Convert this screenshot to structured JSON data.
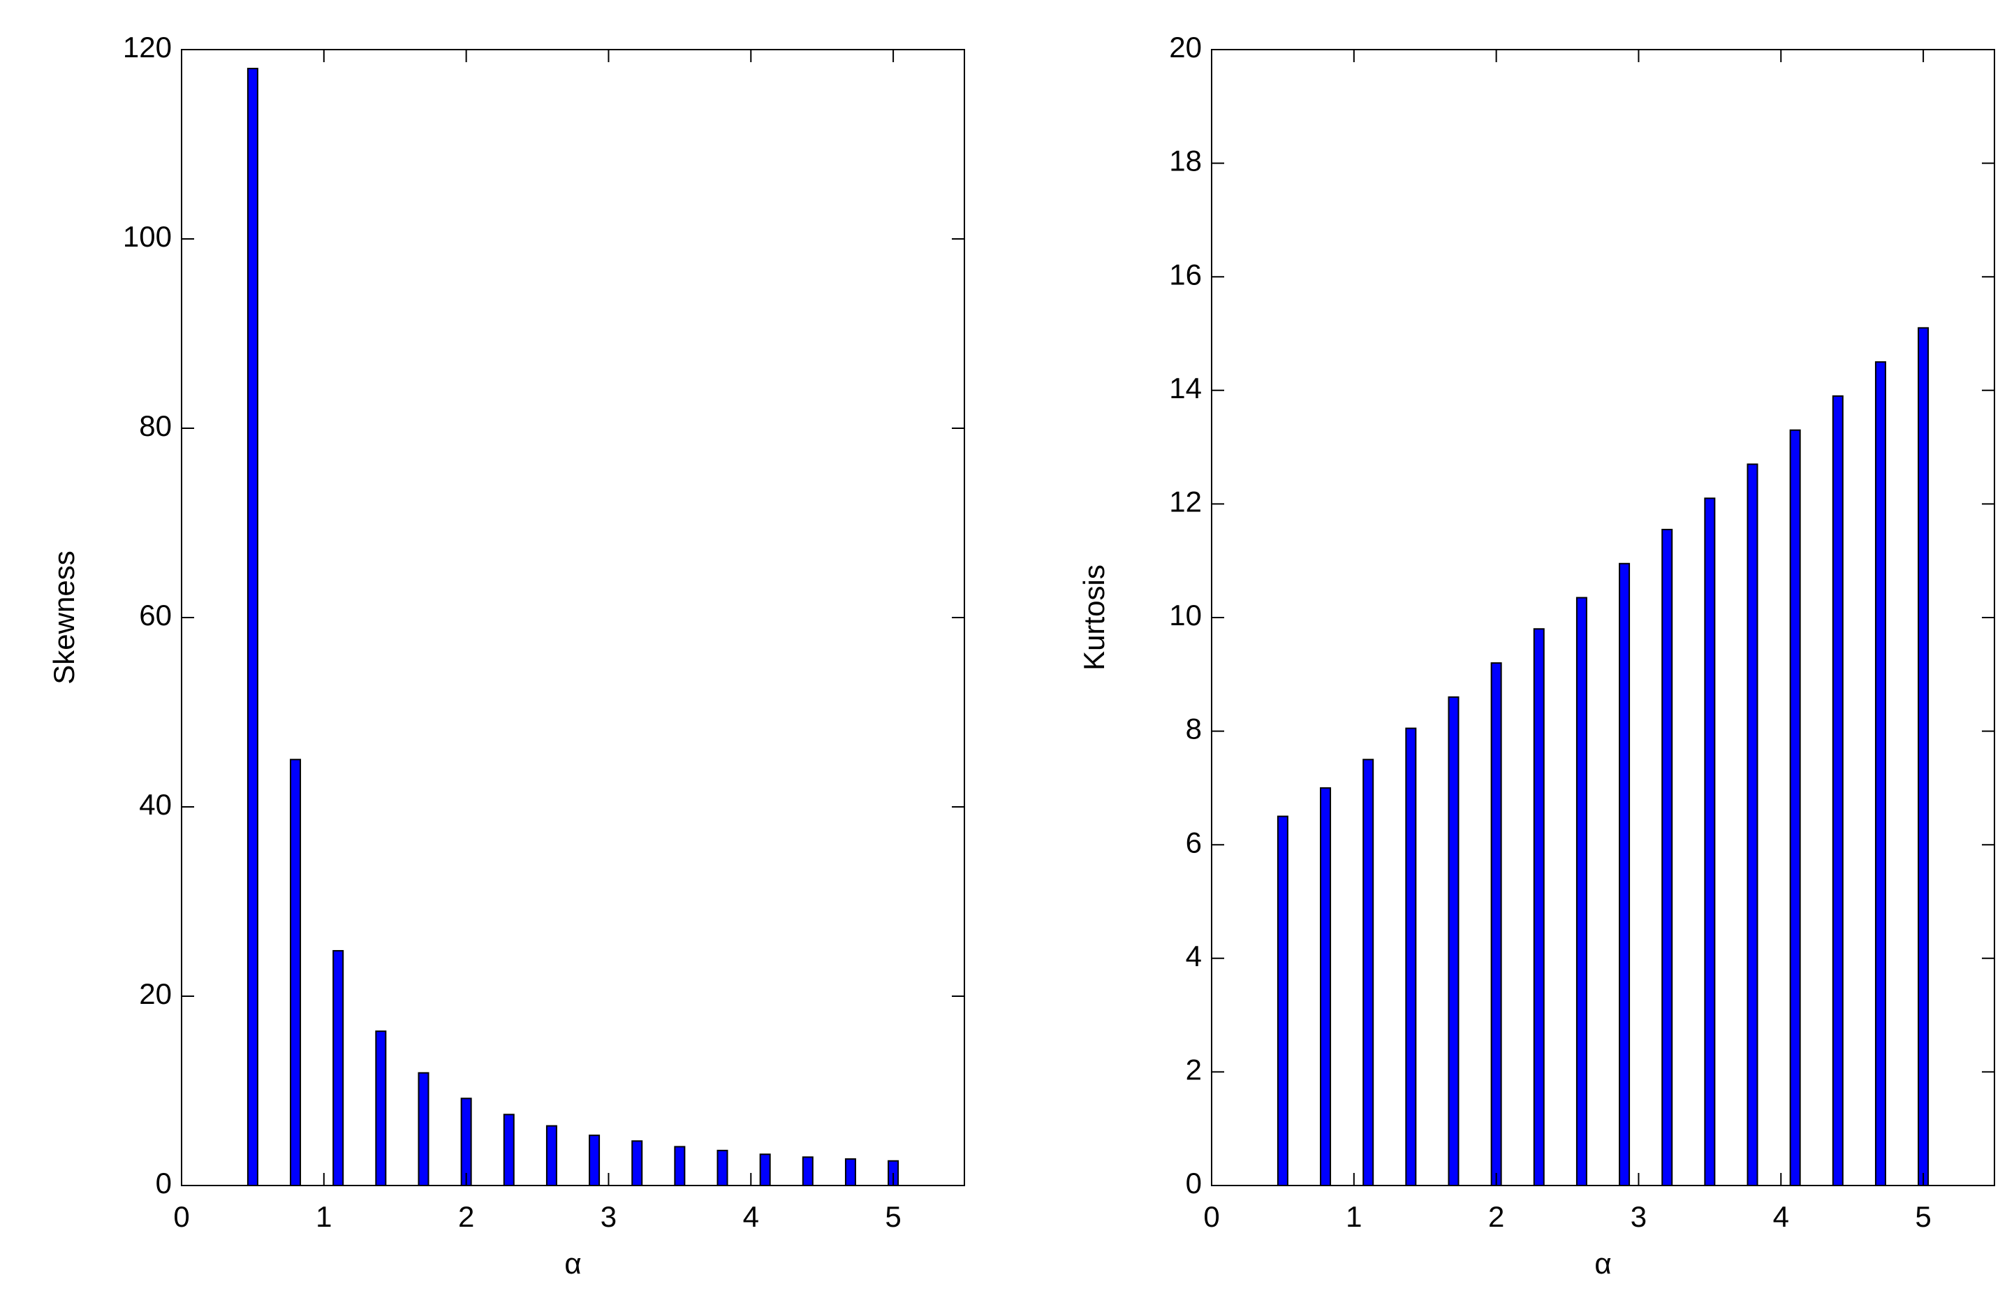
{
  "chart_data": [
    {
      "type": "bar",
      "xlabel": "α",
      "ylabel": "Skewness",
      "x": [
        0.5,
        0.8,
        1.1,
        1.4,
        1.7,
        2.0,
        2.3,
        2.6,
        2.9,
        3.2,
        3.5,
        3.8,
        4.1,
        4.4,
        4.7,
        5.0
      ],
      "values": [
        118,
        45,
        24.8,
        16.3,
        11.9,
        9.2,
        7.5,
        6.3,
        5.3,
        4.7,
        4.1,
        3.7,
        3.3,
        3.0,
        2.8,
        2.6
      ],
      "color": "#0000ff",
      "xlim": [
        0,
        5.5
      ],
      "xticks": [
        0,
        1,
        2,
        3,
        4,
        5
      ],
      "ylim": [
        0,
        120
      ],
      "yticks": [
        0,
        20,
        40,
        60,
        80,
        100,
        120
      ]
    },
    {
      "type": "bar",
      "xlabel": "α",
      "ylabel": "Kurtosis",
      "x": [
        0.5,
        0.8,
        1.1,
        1.4,
        1.7,
        2.0,
        2.3,
        2.6,
        2.9,
        3.2,
        3.5,
        3.8,
        4.1,
        4.4,
        4.7,
        5.0
      ],
      "values": [
        6.5,
        7.0,
        7.5,
        8.05,
        8.6,
        9.2,
        9.8,
        10.35,
        10.95,
        11.55,
        12.1,
        12.7,
        13.3,
        13.9,
        14.5,
        15.1
      ],
      "color": "#0000ff",
      "xlim": [
        0,
        5.5
      ],
      "xticks": [
        0,
        1,
        2,
        3,
        4,
        5
      ],
      "ylim": [
        0,
        20
      ],
      "yticks": [
        0,
        2,
        4,
        6,
        8,
        10,
        12,
        14,
        16,
        18,
        20
      ]
    }
  ]
}
